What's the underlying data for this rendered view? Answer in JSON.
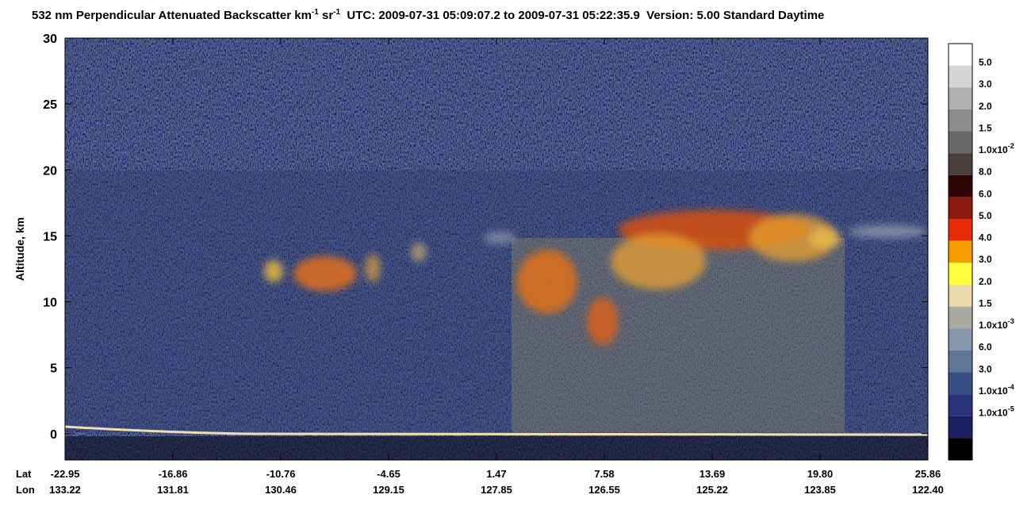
{
  "chart_data": {
    "type": "heatmap",
    "title": [
      "532 nm Perpendicular Attenuated Backscatter km",
      "-1",
      " sr",
      "-1",
      "  UTC: 2009-07-31 05:09:07.2 to 2009-07-31 05:22:35.9  Version: 5.00 Standard Daytime"
    ],
    "y_label": "Altitude, km",
    "ylim": [
      -2,
      30
    ],
    "yticks": [
      0,
      5,
      10,
      15,
      20,
      25,
      30
    ],
    "x_row_labels": [
      "Lat",
      "Lon"
    ],
    "lat": [
      "-22.95",
      "-16.86",
      "-10.76",
      "-4.65",
      "1.47",
      "7.58",
      "13.69",
      "19.80",
      "25.86"
    ],
    "lon": [
      "133.22",
      "131.81",
      "130.46",
      "129.15",
      "127.85",
      "126.55",
      "125.22",
      "123.85",
      "122.40"
    ],
    "colorbar": {
      "colors": [
        "#ffffff",
        "#d6d6d6",
        "#b0b0b0",
        "#8c8c8c",
        "#686868",
        "#4a3f3c",
        "#2e0404",
        "#8a1a10",
        "#e82a0a",
        "#f59c00",
        "#ffff40",
        "#ead9ab",
        "#a9aaa2",
        "#8496a8",
        "#5f7696",
        "#3a4e86",
        "#28327a",
        "#1c1e62",
        "#000000"
      ],
      "labels": [
        {
          "text": "5.0"
        },
        {
          "text": "3.0"
        },
        {
          "text": "2.0"
        },
        {
          "text": "1.5"
        },
        {
          "text": "1.0x10",
          "sup": "-2"
        },
        {
          "text": "8.0"
        },
        {
          "text": "6.0"
        },
        {
          "text": "5.0"
        },
        {
          "text": "4.0"
        },
        {
          "text": "3.0"
        },
        {
          "text": "2.0"
        },
        {
          "text": "1.5"
        },
        {
          "text": "1.0x10",
          "sup": "-3"
        },
        {
          "text": "6.0"
        },
        {
          "text": "3.0"
        },
        {
          "text": "1.0x10",
          "sup": "-4"
        },
        {
          "text": "1.0x10",
          "sup": "-5"
        }
      ]
    }
  }
}
